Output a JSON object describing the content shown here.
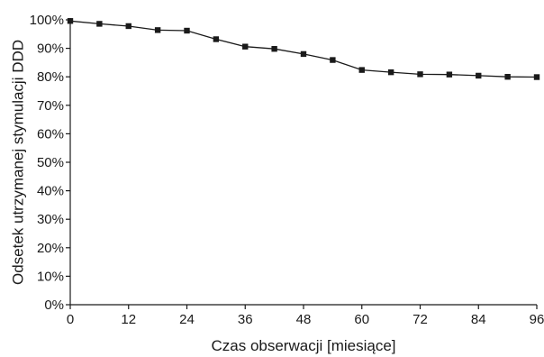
{
  "chart_data": {
    "type": "line",
    "xlabel": "Czas obserwacji [miesiące]",
    "ylabel": "Odsetek utrzymanej stymulacji DDD",
    "xlim": [
      0,
      96
    ],
    "ylim": [
      0,
      100
    ],
    "x_ticks": [
      0,
      12,
      24,
      36,
      48,
      60,
      72,
      84,
      96
    ],
    "x_tick_labels": [
      "0",
      "12",
      "24",
      "36",
      "48",
      "60",
      "72",
      "84",
      "96"
    ],
    "y_ticks": [
      0,
      10,
      20,
      30,
      40,
      50,
      60,
      70,
      80,
      90,
      100
    ],
    "y_tick_labels": [
      "0%",
      "10%",
      "20%",
      "30%",
      "40%",
      "50%",
      "60%",
      "70%",
      "80%",
      "90%",
      "100%"
    ],
    "grid": false,
    "legend": "none",
    "marker": "square",
    "series": [
      {
        "color": "#1a1a1a",
        "x": [
          0,
          6,
          12,
          18,
          24,
          30,
          36,
          42,
          48,
          54,
          60,
          66,
          72,
          78,
          84,
          90,
          96
        ],
        "y": [
          99.6,
          98.6,
          97.8,
          96.4,
          96.2,
          93.2,
          90.6,
          89.8,
          88.0,
          85.9,
          82.4,
          81.6,
          80.9,
          80.8,
          80.4,
          80.0,
          79.9
        ]
      }
    ]
  }
}
